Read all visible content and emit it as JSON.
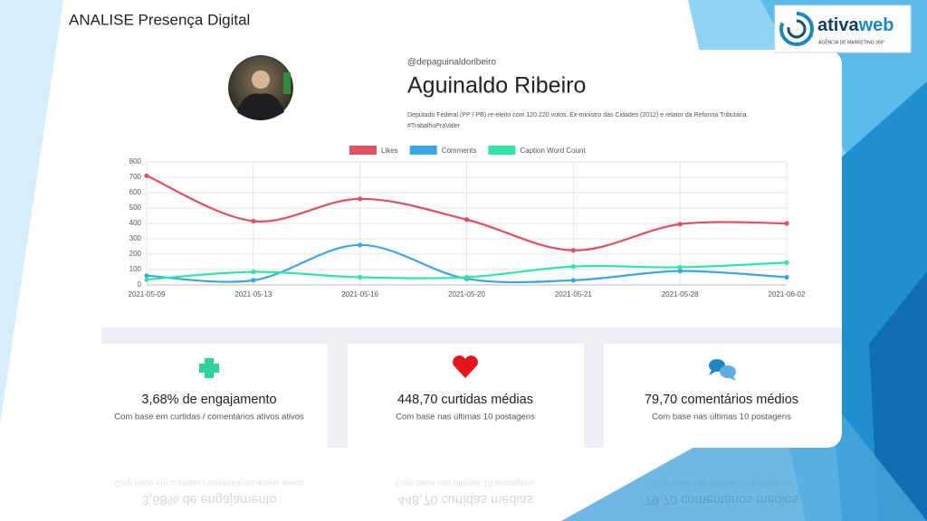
{
  "header": {
    "title": "ANALISE Presença Digital"
  },
  "logo": {
    "name_parts": [
      "ativa",
      "web"
    ],
    "tagline": "AGÊNCIA DE MARKETING 360°"
  },
  "profile": {
    "handle": "@depaguinaldoribeiro",
    "name": "Aguinaldo Ribeiro",
    "bio": [
      "Deputado Federal (PP / PB) re-eleito com 120.220 votos. Ex-ministro das Cidades (2012) e relator da Reforma Tributária.",
      "#TrabalhoPraValer"
    ]
  },
  "chart_data": {
    "type": "line",
    "categories": [
      "2021-05-09",
      "2021-05-13",
      "2021-05-16",
      "2021-05-20",
      "2021-05-21",
      "2021-05-28",
      "2021-06-02"
    ],
    "series": [
      {
        "name": "Likes",
        "color": "#e2505f",
        "values": [
          710,
          415,
          560,
          425,
          225,
          395,
          400
        ]
      },
      {
        "name": "Comments",
        "color": "#3aa6e8",
        "values": [
          60,
          30,
          260,
          40,
          30,
          90,
          50
        ]
      },
      {
        "name": "Caption Word Count",
        "color": "#2fe6a2",
        "values": [
          35,
          85,
          50,
          50,
          120,
          115,
          145
        ]
      }
    ],
    "ylim": [
      0,
      800
    ],
    "yticks": [
      0,
      100,
      200,
      300,
      400,
      500,
      600,
      700,
      800
    ],
    "grid": true,
    "smooth": true
  },
  "stats": [
    {
      "title": "3,68% de engajamento",
      "subtitle": "Com base em curtidas / comentários ativos ativos"
    },
    {
      "title": "448,70 curtidas médias",
      "subtitle": "Com base nas últimas 10 postagens"
    },
    {
      "title": "79,70 comentários médios",
      "subtitle": "Com base nas últimas 10 postagens"
    }
  ]
}
